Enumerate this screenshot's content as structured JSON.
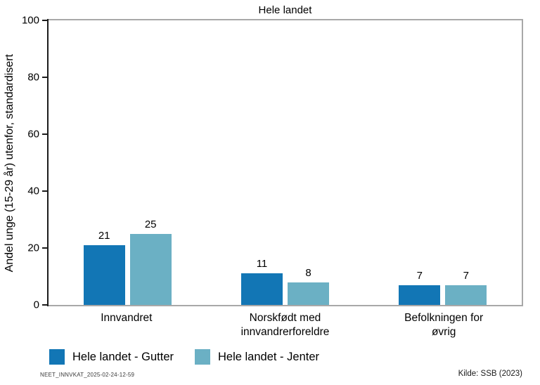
{
  "footnote": "NEET_INNVKAT_2025-02-24-12-59",
  "source": "Kilde: SSB (2023)",
  "colors": {
    "gutter_blue": "#1276b5",
    "jenter_blue": "#6bb0c4",
    "frame_gray": "#a8a8a8",
    "axis_black": "#1c1c1c"
  },
  "chart_data": {
    "type": "bar",
    "title": "Hele landet",
    "categories": [
      "Innvandret",
      "Norskfødt med innvandrerforeldre",
      "Befolkningen for øvrig"
    ],
    "series": [
      {
        "name": "Hele landet - Gutter",
        "color": "#1276b5",
        "values": [
          21,
          11,
          7
        ]
      },
      {
        "name": "Hele landet - Jenter",
        "color": "#6bb0c4",
        "values": [
          25,
          8,
          7
        ]
      }
    ],
    "ylabel": "Andel unge (15-29 år) utenfor, standardisert",
    "xlabel": "",
    "ylim": [
      0,
      100
    ],
    "yticks": [
      0,
      20,
      40,
      60,
      80,
      100
    ],
    "grid": false,
    "value_labels": true,
    "legend_position": "bottom-left"
  }
}
